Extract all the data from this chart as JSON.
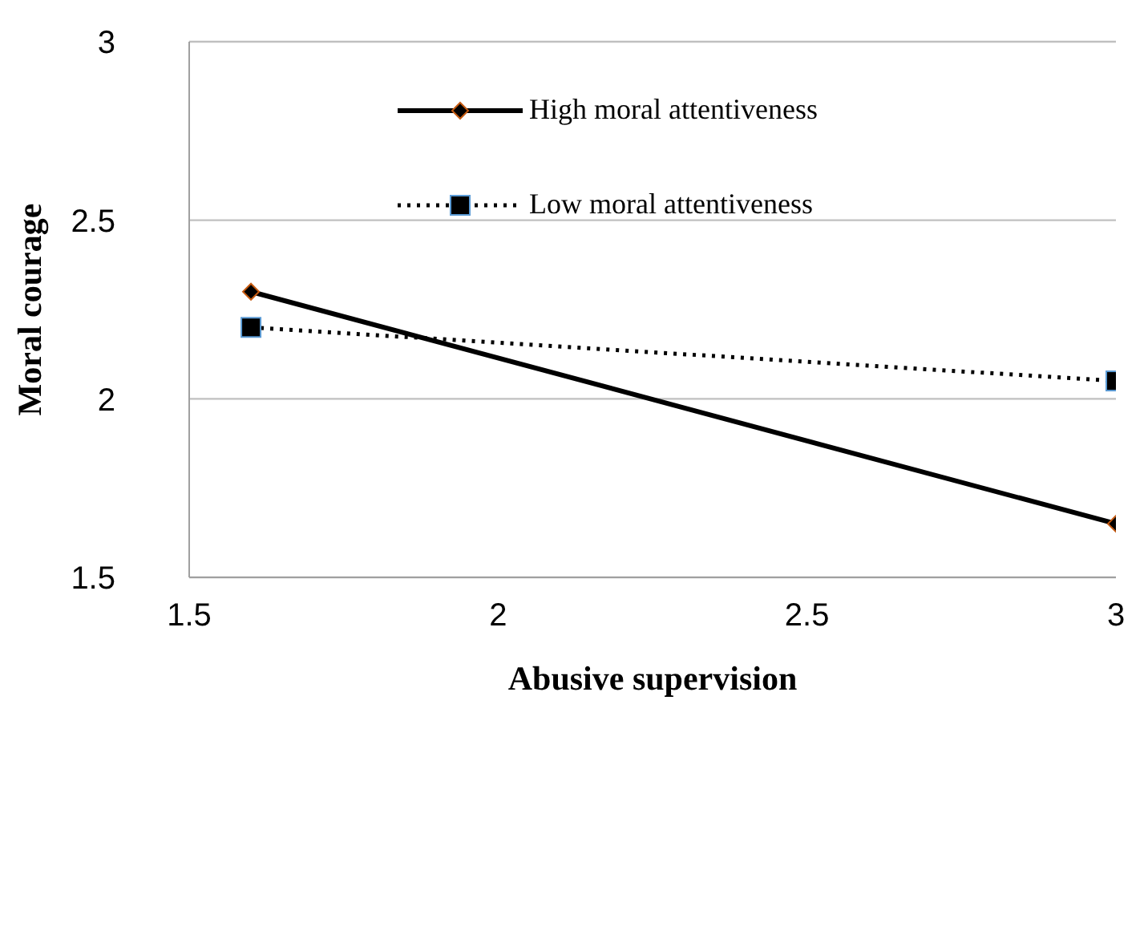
{
  "chart_data": {
    "type": "line",
    "xlabel": "Abusive supervision",
    "ylabel": "Moral courage",
    "x": [
      1.6,
      3
    ],
    "xlim": [
      1.5,
      3
    ],
    "xticks": [
      1.5,
      2,
      2.5,
      3
    ],
    "ylim": [
      1.5,
      3
    ],
    "yticks": [
      1.5,
      2,
      2.5,
      3
    ],
    "grid": "y",
    "legend": "top",
    "series": [
      {
        "name": "High moral attentiveness",
        "color": "#000000",
        "values": [
          2.3,
          1.65
        ],
        "marker": "diamond",
        "line_style": "solid"
      },
      {
        "name": "Low moral attentiveness",
        "color": "#000000",
        "values": [
          2.2,
          2.05
        ],
        "marker": "square",
        "line_style": "dotted"
      }
    ]
  }
}
